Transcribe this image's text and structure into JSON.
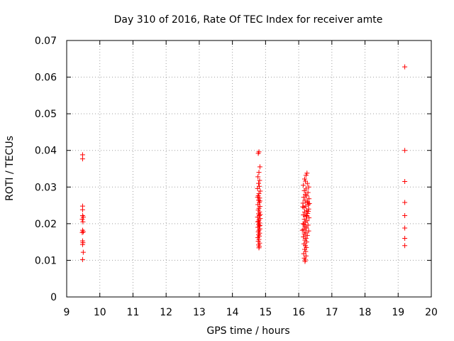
{
  "chart_data": {
    "type": "scatter",
    "title": "Day 310 of 2016, Rate Of TEC Index for receiver amte",
    "xlabel": "GPS time / hours",
    "ylabel": "ROTI / TECUs",
    "xlim": [
      9,
      20
    ],
    "ylim": [
      0,
      0.07
    ],
    "x_ticks": [
      "9",
      "10",
      "11",
      "12",
      "13",
      "14",
      "15",
      "16",
      "17",
      "18",
      "19",
      "20"
    ],
    "y_ticks": [
      "0",
      "0.01",
      "0.02",
      "0.03",
      "0.04",
      "0.05",
      "0.06",
      "0.07"
    ],
    "grid": true,
    "legend": "none",
    "marker": "plus",
    "color": "#ff0000",
    "series": [
      {
        "points": [
          [
            9.48,
            0.0388
          ],
          [
            9.48,
            0.0377
          ],
          [
            9.48,
            0.0248
          ],
          [
            9.48,
            0.0238
          ],
          [
            9.48,
            0.0222
          ],
          [
            9.5,
            0.0218
          ],
          [
            9.47,
            0.0212
          ],
          [
            9.49,
            0.0205
          ],
          [
            9.48,
            0.0182
          ],
          [
            9.5,
            0.0178
          ],
          [
            9.47,
            0.0176
          ],
          [
            9.48,
            0.0153
          ],
          [
            9.49,
            0.0148
          ],
          [
            9.48,
            0.0143
          ],
          [
            9.5,
            0.0122
          ],
          [
            9.48,
            0.0102
          ],
          [
            14.8,
            0.0396
          ],
          [
            14.78,
            0.0392
          ],
          [
            14.83,
            0.0355
          ],
          [
            14.8,
            0.034
          ],
          [
            14.77,
            0.0328
          ],
          [
            14.82,
            0.0318
          ],
          [
            14.79,
            0.031
          ],
          [
            14.81,
            0.0302
          ],
          [
            14.76,
            0.0296
          ],
          [
            14.84,
            0.0289
          ],
          [
            14.8,
            0.0282
          ],
          [
            14.78,
            0.0276
          ],
          [
            14.82,
            0.027
          ],
          [
            14.79,
            0.0264
          ],
          [
            14.81,
            0.0258
          ],
          [
            14.77,
            0.0252
          ],
          [
            14.83,
            0.0247
          ],
          [
            14.8,
            0.0242
          ],
          [
            14.78,
            0.0237
          ],
          [
            14.82,
            0.0232
          ],
          [
            14.79,
            0.0227
          ],
          [
            14.81,
            0.0222
          ],
          [
            14.76,
            0.0218
          ],
          [
            14.84,
            0.0214
          ],
          [
            14.8,
            0.021
          ],
          [
            14.78,
            0.0206
          ],
          [
            14.82,
            0.0202
          ],
          [
            14.79,
            0.0198
          ],
          [
            14.81,
            0.0194
          ],
          [
            14.77,
            0.019
          ],
          [
            14.83,
            0.0186
          ],
          [
            14.8,
            0.0182
          ],
          [
            14.78,
            0.0178
          ],
          [
            14.82,
            0.0174
          ],
          [
            14.79,
            0.017
          ],
          [
            14.81,
            0.0166
          ],
          [
            14.77,
            0.0162
          ],
          [
            14.8,
            0.0157
          ],
          [
            14.78,
            0.0152
          ],
          [
            14.82,
            0.0147
          ],
          [
            14.79,
            0.0142
          ],
          [
            14.81,
            0.0138
          ],
          [
            14.8,
            0.0134
          ],
          [
            14.83,
            0.0262
          ],
          [
            14.77,
            0.0205
          ],
          [
            14.84,
            0.0225
          ],
          [
            14.76,
            0.0272
          ],
          [
            14.83,
            0.0195
          ],
          [
            16.25,
            0.0338
          ],
          [
            16.22,
            0.0332
          ],
          [
            16.18,
            0.0322
          ],
          [
            16.2,
            0.0316
          ],
          [
            16.26,
            0.031
          ],
          [
            16.14,
            0.0305
          ],
          [
            16.3,
            0.03
          ],
          [
            16.22,
            0.0295
          ],
          [
            16.17,
            0.029
          ],
          [
            16.28,
            0.0285
          ],
          [
            16.2,
            0.028
          ],
          [
            16.24,
            0.0276
          ],
          [
            16.15,
            0.0272
          ],
          [
            16.31,
            0.0268
          ],
          [
            16.19,
            0.0264
          ],
          [
            16.26,
            0.026
          ],
          [
            16.13,
            0.0256
          ],
          [
            16.29,
            0.0252
          ],
          [
            16.21,
            0.0248
          ],
          [
            16.16,
            0.0244
          ],
          [
            16.3,
            0.024
          ],
          [
            16.24,
            0.0236
          ],
          [
            16.18,
            0.0232
          ],
          [
            16.27,
            0.0228
          ],
          [
            16.14,
            0.0224
          ],
          [
            16.22,
            0.022
          ],
          [
            16.31,
            0.0216
          ],
          [
            16.17,
            0.0212
          ],
          [
            16.25,
            0.0208
          ],
          [
            16.2,
            0.0204
          ],
          [
            16.13,
            0.02
          ],
          [
            16.28,
            0.0196
          ],
          [
            16.19,
            0.0192
          ],
          [
            16.23,
            0.0188
          ],
          [
            16.15,
            0.0184
          ],
          [
            16.3,
            0.018
          ],
          [
            16.21,
            0.0176
          ],
          [
            16.17,
            0.0172
          ],
          [
            16.26,
            0.0168
          ],
          [
            16.14,
            0.0164
          ],
          [
            16.22,
            0.016
          ],
          [
            16.19,
            0.0155
          ],
          [
            16.24,
            0.015
          ],
          [
            16.16,
            0.0145
          ],
          [
            16.2,
            0.014
          ],
          [
            16.23,
            0.0135
          ],
          [
            16.18,
            0.013
          ],
          [
            16.21,
            0.0124
          ],
          [
            16.15,
            0.0118
          ],
          [
            16.22,
            0.0112
          ],
          [
            16.17,
            0.0106
          ],
          [
            16.2,
            0.0101
          ],
          [
            16.19,
            0.0097
          ],
          [
            16.27,
            0.0258
          ],
          [
            16.12,
            0.0246
          ],
          [
            16.29,
            0.0234
          ],
          [
            16.24,
            0.0222
          ],
          [
            16.16,
            0.0198
          ],
          [
            16.32,
            0.0255
          ],
          [
            16.11,
            0.0182
          ]
        ]
      },
      {
        "points": [
          [
            19.2,
            0.0628
          ],
          [
            19.2,
            0.04
          ],
          [
            19.2,
            0.0315
          ],
          [
            19.2,
            0.0258
          ],
          [
            19.2,
            0.0222
          ],
          [
            19.2,
            0.0188
          ],
          [
            19.2,
            0.016
          ],
          [
            19.2,
            0.014
          ]
        ]
      }
    ]
  }
}
